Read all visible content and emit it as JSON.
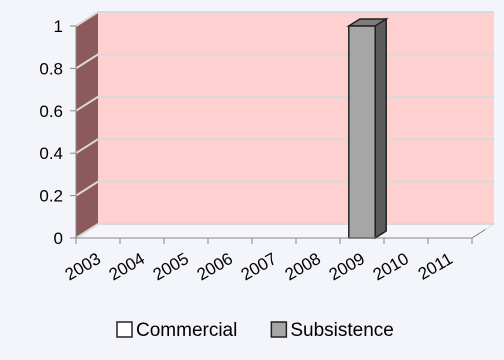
{
  "chart_data": {
    "type": "bar",
    "style": "3d-clustered-column",
    "categories": [
      "2003",
      "2004",
      "2005",
      "2006",
      "2007",
      "2008",
      "2009",
      "2010",
      "2011"
    ],
    "series": [
      {
        "name": "Commercial",
        "color": "#ffffff",
        "values": [
          0,
          0,
          0,
          0,
          0,
          0,
          0,
          0,
          0
        ]
      },
      {
        "name": "Subsistence",
        "color": "#a6a6a6",
        "values": [
          0,
          0,
          0,
          0,
          0,
          0,
          1,
          0,
          0
        ]
      }
    ],
    "y_ticks": [
      "0",
      "0.2",
      "0.4",
      "0.6",
      "0.8",
      "1"
    ],
    "ylim": [
      0,
      1
    ],
    "grid": true,
    "legend_position": "bottom",
    "wall_color": "#ffd0d0",
    "floor_color": "#f4f6fb",
    "gridline_color": "#d9d9d9"
  }
}
